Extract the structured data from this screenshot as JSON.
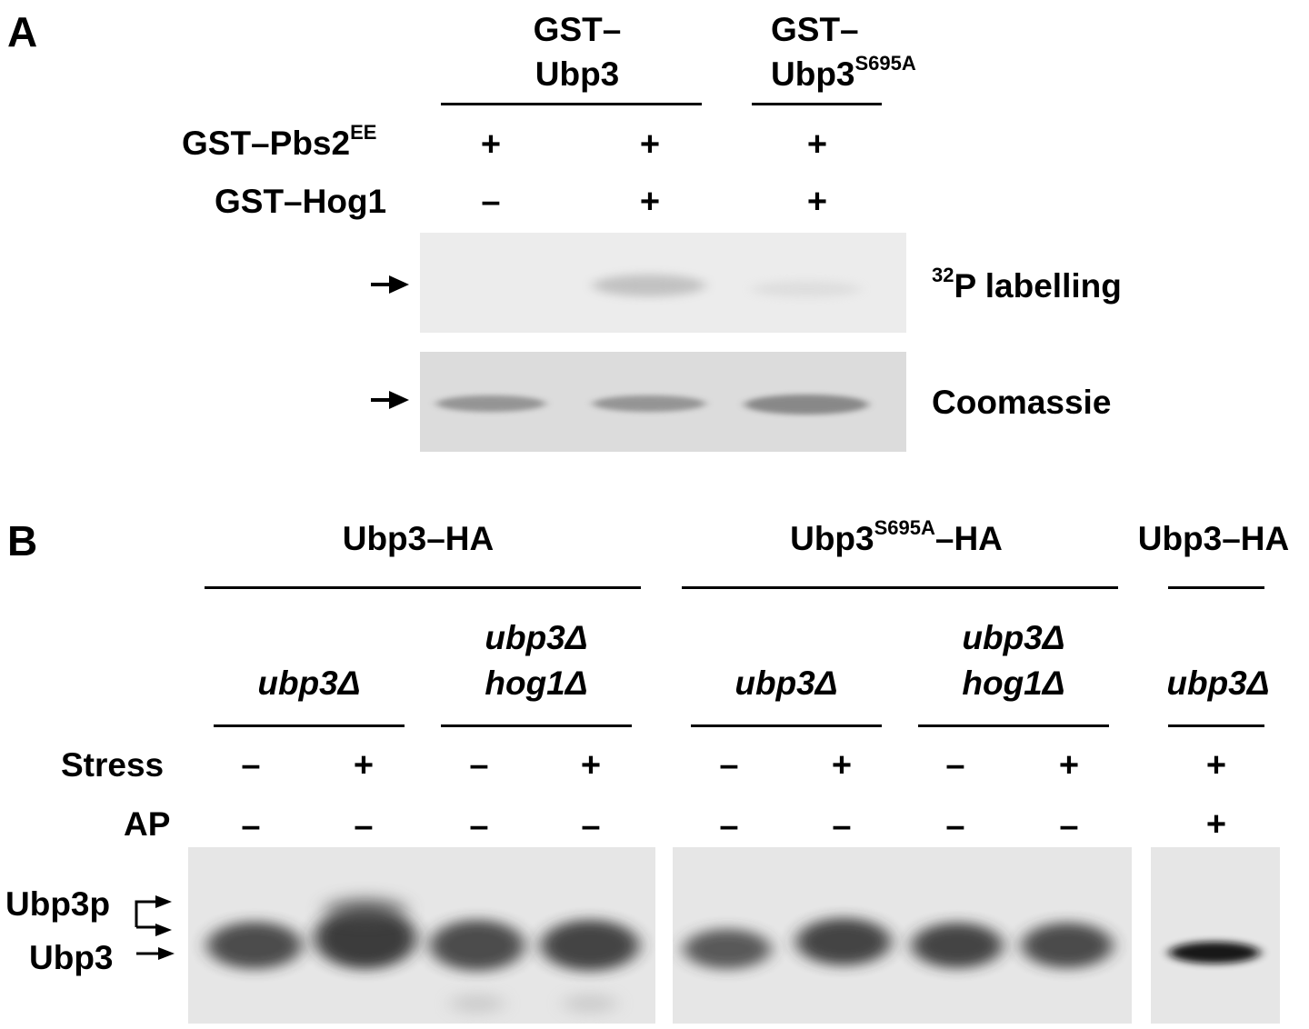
{
  "panelA": {
    "panel_label": "A",
    "group1": {
      "line1": "GST–",
      "line2": "Ubp3"
    },
    "group2": {
      "line1": "GST–",
      "line2_base": "Ubp3",
      "line2_sup": "S695A"
    },
    "row1": {
      "label_base": "GST–Pbs2",
      "label_sup": "EE",
      "values": [
        "+",
        "+",
        "+"
      ]
    },
    "row2": {
      "label": "GST–Hog1",
      "values": [
        "–",
        "+",
        "+"
      ]
    },
    "blot1_label_sup": "32",
    "blot1_label": "P labelling",
    "blot2_label": "Coomassie"
  },
  "panelB": {
    "panel_label": "B",
    "groups": [
      {
        "base": "Ubp3",
        "sup": "",
        "suffix": "–HA"
      },
      {
        "base": "Ubp3",
        "sup": "S695A",
        "suffix": "–HA"
      },
      {
        "base": "Ubp3",
        "sup": "",
        "suffix": "–HA"
      }
    ],
    "strains": [
      {
        "line1": "",
        "line2": "ubp3Δ"
      },
      {
        "line1": "ubp3Δ",
        "line2": "hog1Δ"
      },
      {
        "line1": "",
        "line2": "ubp3Δ"
      },
      {
        "line1": "ubp3Δ",
        "line2": "hog1Δ"
      },
      {
        "line1": "",
        "line2": "ubp3Δ"
      }
    ],
    "stress_label": "Stress",
    "stress_values": [
      "–",
      "+",
      "–",
      "+",
      "–",
      "+",
      "–",
      "+",
      "+"
    ],
    "ap_label": "AP",
    "ap_values": [
      "–",
      "–",
      "–",
      "–",
      "–",
      "–",
      "–",
      "–",
      "+"
    ],
    "band_upper": "Ubp3p",
    "band_lower": "Ubp3"
  }
}
